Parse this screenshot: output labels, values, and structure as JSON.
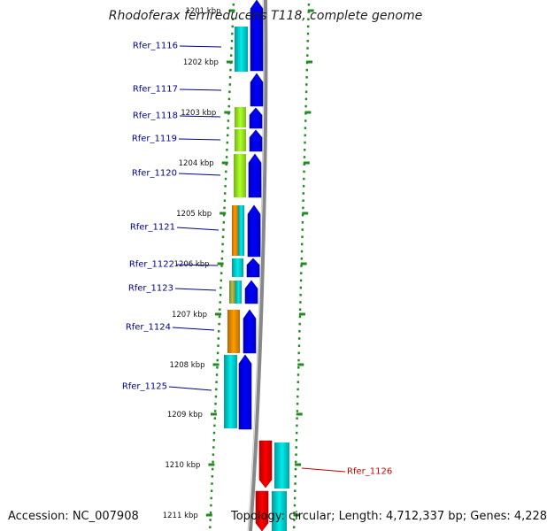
{
  "title": "Rhodoferax ferrireducens T118, complete genome",
  "accession": "Accession: NC_007908",
  "topology": "Topology: circular; Length: 4,712,337 bp; Genes: 4,228",
  "ticks": [
    {
      "label": "1201 kbp"
    },
    {
      "label": "1202 kbp"
    },
    {
      "label": "1203 kbp"
    },
    {
      "label": "1204 kbp"
    },
    {
      "label": "1205 kbp"
    },
    {
      "label": "1206 kbp"
    },
    {
      "label": "1207 kbp"
    },
    {
      "label": "1208 kbp"
    },
    {
      "label": "1209 kbp"
    },
    {
      "label": "1210 kbp"
    },
    {
      "label": "1211 kbp"
    }
  ],
  "genes": [
    {
      "name": "Rfer_1116",
      "color": "#00008b"
    },
    {
      "name": "Rfer_1117",
      "color": "#00008b"
    },
    {
      "name": "Rfer_1118",
      "color": "#00008b"
    },
    {
      "name": "Rfer_1119",
      "color": "#00008b"
    },
    {
      "name": "Rfer_1120",
      "color": "#00008b"
    },
    {
      "name": "Rfer_1121",
      "color": "#00008b"
    },
    {
      "name": "Rfer_1122",
      "color": "#00008b"
    },
    {
      "name": "Rfer_1123",
      "color": "#00008b"
    },
    {
      "name": "Rfer_1124",
      "color": "#00008b"
    },
    {
      "name": "Rfer_1125",
      "color": "#00008b"
    },
    {
      "name": "Rfer_1126",
      "color": "#cc0000"
    }
  ],
  "colors": {
    "forward_cds": "#0000ee",
    "reverse_cds": "#ee0000",
    "backbone": "#888888",
    "tick": "#228b22",
    "cyan_feature": "#00cccc",
    "green_feature": "#99ee22",
    "orange_feature": "#ee8800",
    "olive_feature": "#99aa44"
  }
}
